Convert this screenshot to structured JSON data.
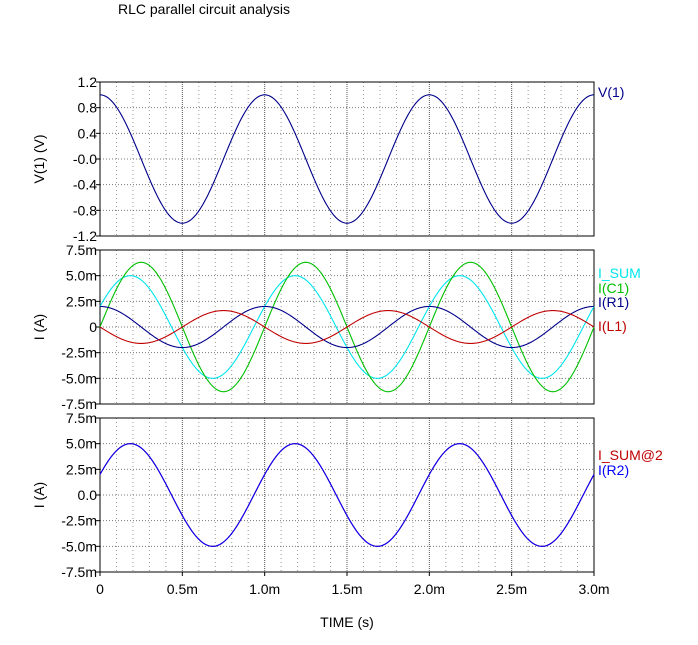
{
  "title": "RLC parallel circuit analysis",
  "colors": {
    "v1": "#00008b",
    "isum": "#00e5ee",
    "ic1": "#00c000",
    "ir1": "#00008b",
    "il1": "#c00000",
    "isum2": "#c00000",
    "ir2": "#0000ff",
    "grid": "#000000",
    "frame": "#000000"
  },
  "chart_data": [
    {
      "type": "line",
      "ylabel": "V(1)  (V)",
      "xlim": [
        0,
        0.003
      ],
      "ylim": [
        -1.2,
        1.2
      ],
      "y_ticks": [
        -1.2,
        -0.8,
        -0.4,
        0.0,
        0.4,
        0.8,
        1.2
      ],
      "y_tick_labels": [
        "-1.2",
        "-0.8",
        "-0.4",
        "-0.0",
        "0.4",
        "0.8",
        "1.2"
      ],
      "grid": true,
      "legend": "right",
      "series": [
        {
          "name": "V(1)",
          "color": "#00008b",
          "frequency_hz": 1000,
          "amplitude": 1.0,
          "phase_deg": 0
        }
      ]
    },
    {
      "type": "line",
      "ylabel": "I  (A)",
      "xlim": [
        0,
        0.003
      ],
      "ylim": [
        -0.0075,
        0.0075
      ],
      "y_ticks": [
        -0.0075,
        -0.005,
        -0.0025,
        0,
        0.0025,
        0.005,
        0.0075
      ],
      "y_tick_labels": [
        "-7.5m",
        "-5.0m",
        "-2.5m",
        "0",
        "2.5m",
        "5.0m",
        "7.5m"
      ],
      "grid": true,
      "legend": "right",
      "series": [
        {
          "name": "I_SUM",
          "color": "#00e5ee",
          "frequency_hz": 1000,
          "amplitude": 0.005,
          "phase_deg": -66.4
        },
        {
          "name": "I(C1)",
          "color": "#00c000",
          "frequency_hz": 1000,
          "amplitude": 0.0063,
          "phase_deg": -90
        },
        {
          "name": "I(R1)",
          "color": "#00008b",
          "frequency_hz": 1000,
          "amplitude": 0.002,
          "phase_deg": 0
        },
        {
          "name": "I(L1)",
          "color": "#c00000",
          "frequency_hz": 1000,
          "amplitude": 0.0016,
          "phase_deg": 90
        }
      ]
    },
    {
      "type": "line",
      "ylabel": "I  (A)",
      "xlim": [
        0,
        0.003
      ],
      "ylim": [
        -0.0075,
        0.0075
      ],
      "y_ticks": [
        -0.0075,
        -0.005,
        -0.0025,
        0,
        0.0025,
        0.005,
        0.0075
      ],
      "y_tick_labels": [
        "-7.5m",
        "-5.0m",
        "-2.5m",
        "0.0",
        "2.5m",
        "5.0m",
        "7.5m"
      ],
      "grid": true,
      "legend": "right",
      "series": [
        {
          "name": "I_SUM@2",
          "color": "#c00000",
          "frequency_hz": 1000,
          "amplitude": 0.005,
          "phase_deg": -66.4
        },
        {
          "name": "I(R2)",
          "color": "#0000ff",
          "frequency_hz": 1000,
          "amplitude": 0.005,
          "phase_deg": -66.4
        }
      ]
    }
  ],
  "x_axis": {
    "label": "TIME  (s)",
    "ticks": [
      0,
      0.0005,
      0.001,
      0.0015,
      0.002,
      0.0025,
      0.003
    ],
    "tick_labels": [
      "0",
      "0.5m",
      "1.0m",
      "1.5m",
      "2.0m",
      "2.5m",
      "3.0m"
    ],
    "minor_grid_step": 0.0001
  }
}
